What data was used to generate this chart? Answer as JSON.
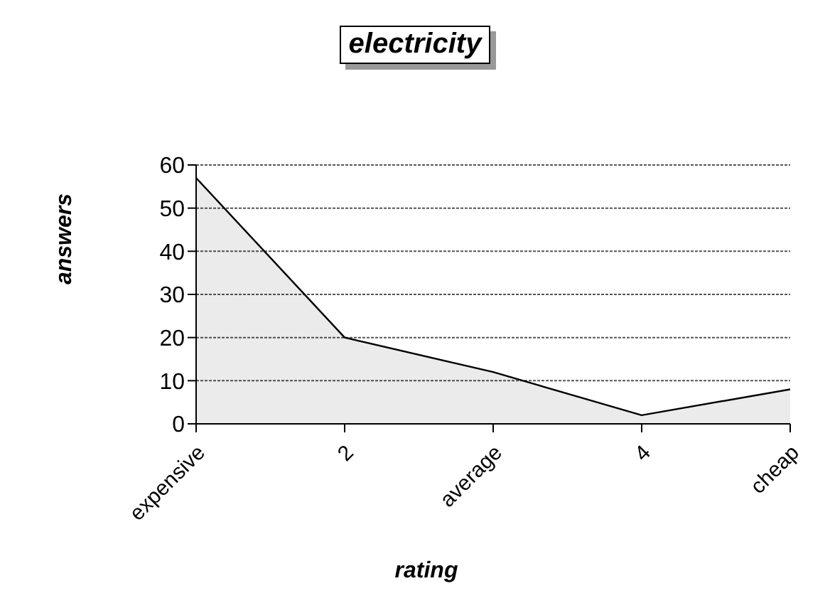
{
  "chart_data": {
    "type": "area",
    "title": "electricity",
    "xlabel": "rating",
    "ylabel": "answers",
    "categories": [
      "expensive",
      "2",
      "average",
      "4",
      "cheap"
    ],
    "series": [
      {
        "color": "#000000",
        "values": [
          57,
          20,
          12,
          2,
          8
        ]
      }
    ],
    "ylim": [
      0,
      60
    ],
    "yticks": [
      0,
      10,
      20,
      30,
      40,
      50,
      60
    ],
    "grid": "y"
  }
}
